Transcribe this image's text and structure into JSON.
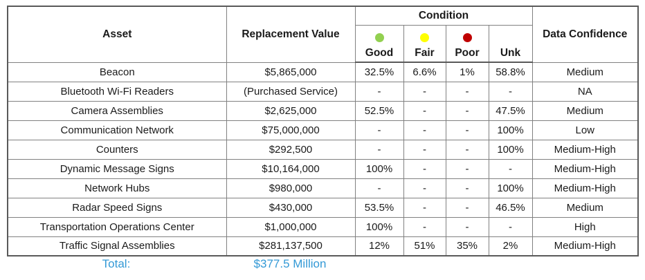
{
  "table": {
    "headers": {
      "asset": "Asset",
      "replacement_value": "Replacement Value",
      "condition": "Condition",
      "data_confidence": "Data Confidence",
      "condition_columns": [
        {
          "label": "Good",
          "dot_color": "#92D050"
        },
        {
          "label": "Fair",
          "dot_color": "#FFFF00"
        },
        {
          "label": "Poor",
          "dot_color": "#C00000"
        },
        {
          "label": "Unk",
          "dot_color": null
        }
      ]
    },
    "rows": [
      {
        "asset": "Beacon",
        "replacement_value": "$5,865,000",
        "good": "32.5%",
        "fair": "6.6%",
        "poor": "1%",
        "unk": "58.8%",
        "confidence": "Medium"
      },
      {
        "asset": "Bluetooth Wi-Fi Readers",
        "replacement_value": "(Purchased Service)",
        "good": "-",
        "fair": "-",
        "poor": "-",
        "unk": "-",
        "confidence": "NA"
      },
      {
        "asset": "Camera Assemblies",
        "replacement_value": "$2,625,000",
        "good": "52.5%",
        "fair": "-",
        "poor": "-",
        "unk": "47.5%",
        "confidence": "Medium"
      },
      {
        "asset": "Communication Network",
        "replacement_value": "$75,000,000",
        "good": "-",
        "fair": "-",
        "poor": "-",
        "unk": "100%",
        "confidence": "Low"
      },
      {
        "asset": "Counters",
        "replacement_value": "$292,500",
        "good": "-",
        "fair": "-",
        "poor": "-",
        "unk": "100%",
        "confidence": "Medium-High"
      },
      {
        "asset": "Dynamic Message Signs",
        "replacement_value": "$10,164,000",
        "good": "100%",
        "fair": "-",
        "poor": "-",
        "unk": "-",
        "confidence": "Medium-High"
      },
      {
        "asset": "Network Hubs",
        "replacement_value": "$980,000",
        "good": "-",
        "fair": "-",
        "poor": "-",
        "unk": "100%",
        "confidence": "Medium-High"
      },
      {
        "asset": "Radar Speed Signs",
        "replacement_value": "$430,000",
        "good": "53.5%",
        "fair": "-",
        "poor": "-",
        "unk": "46.5%",
        "confidence": "Medium"
      },
      {
        "asset": "Transportation Operations Center",
        "replacement_value": "$1,000,000",
        "good": "100%",
        "fair": "-",
        "poor": "-",
        "unk": "-",
        "confidence": "High"
      },
      {
        "asset": "Traffic Signal Assemblies",
        "replacement_value": "$281,137,500",
        "good": "12%",
        "fair": "51%",
        "poor": "35%",
        "unk": "2%",
        "confidence": "Medium-High"
      }
    ],
    "total": {
      "label": "Total:",
      "value": "$377.5 Million"
    }
  },
  "colors": {
    "total_text": "#3399D6",
    "good_dot": "#92D050",
    "fair_dot": "#FFFF00",
    "poor_dot": "#C00000"
  }
}
